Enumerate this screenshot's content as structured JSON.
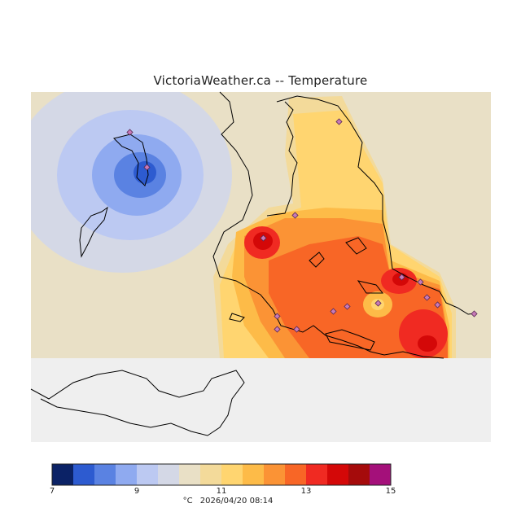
{
  "title": "VictoriaWeather.ca  --  Temperature",
  "colorbar": {
    "colors": [
      "#0b2266",
      "#2d5bd0",
      "#5a82e2",
      "#8faaf0",
      "#bcc9f2",
      "#d4d8e6",
      "#e9e0c6",
      "#f3da9a",
      "#ffd570",
      "#fdbb48",
      "#fb9335",
      "#f86626",
      "#f02a22",
      "#d40808",
      "#a50b0b",
      "#a4107a"
    ],
    "ticks": [
      {
        "label": "7",
        "value": 7
      },
      {
        "label": "9",
        "value": 9
      },
      {
        "label": "11",
        "value": 11
      },
      {
        "label": "13",
        "value": 13
      },
      {
        "label": "15",
        "value": 15
      }
    ],
    "min": 7,
    "max": 15
  },
  "footer": {
    "unit": "°C",
    "timestamp": "2026/04/20 08:14"
  }
}
